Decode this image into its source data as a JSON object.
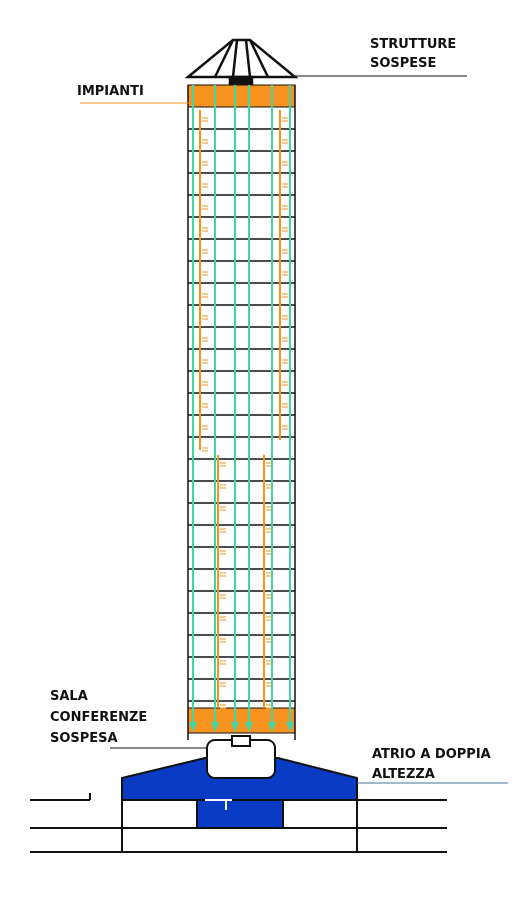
{
  "labels": {
    "strutture": [
      "STRUTTURE",
      "SOSPESE"
    ],
    "impianti": [
      "IMPIANTI"
    ],
    "sala": [
      "SALA",
      "CONFERENZE",
      "SOSPESA"
    ],
    "atrio": [
      "ATRIO A DOPPIA",
      "ALTEZZA"
    ]
  }
}
